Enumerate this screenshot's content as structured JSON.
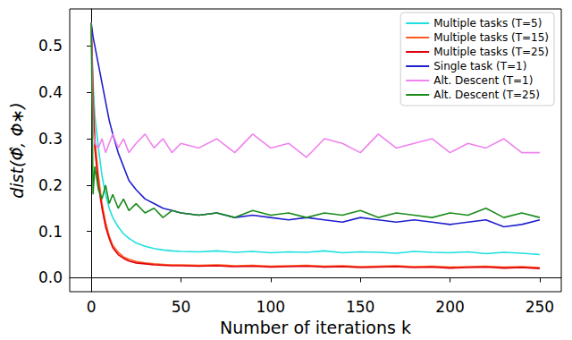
{
  "chart_data": {
    "type": "line",
    "x_label": "Number of iterations k",
    "y_label": "dist(Φ̂, Φ∗)",
    "x": [
      0,
      1,
      2,
      4,
      6,
      8,
      10,
      12,
      15,
      18,
      21,
      25,
      30,
      35,
      40,
      45,
      50,
      60,
      70,
      80,
      90,
      100,
      110,
      120,
      130,
      140,
      150,
      160,
      170,
      180,
      190,
      200,
      210,
      220,
      230,
      240,
      250
    ],
    "series": [
      {
        "name": "Multiple tasks (T=5)",
        "color": "#1fe0e0",
        "values": [
          0.55,
          0.42,
          0.35,
          0.28,
          0.22,
          0.18,
          0.15,
          0.13,
          0.11,
          0.095,
          0.085,
          0.075,
          0.068,
          0.063,
          0.06,
          0.058,
          0.057,
          0.056,
          0.058,
          0.055,
          0.057,
          0.054,
          0.056,
          0.055,
          0.058,
          0.054,
          0.056,
          0.055,
          0.053,
          0.057,
          0.055,
          0.054,
          0.056,
          0.052,
          0.055,
          0.053,
          0.05
        ]
      },
      {
        "name": "Multiple tasks (T=15)",
        "color": "#ff5a1f",
        "values": [
          0.55,
          0.4,
          0.3,
          0.22,
          0.16,
          0.12,
          0.09,
          0.07,
          0.055,
          0.045,
          0.04,
          0.035,
          0.032,
          0.03,
          0.029,
          0.028,
          0.028,
          0.027,
          0.028,
          0.026,
          0.027,
          0.025,
          0.026,
          0.027,
          0.025,
          0.026,
          0.024,
          0.025,
          0.026,
          0.024,
          0.025,
          0.023,
          0.024,
          0.025,
          0.023,
          0.024,
          0.022
        ]
      },
      {
        "name": "Multiple tasks (T=25)",
        "color": "#e0000b",
        "values": [
          0.55,
          0.38,
          0.28,
          0.2,
          0.15,
          0.11,
          0.085,
          0.065,
          0.05,
          0.042,
          0.036,
          0.032,
          0.03,
          0.028,
          0.027,
          0.026,
          0.026,
          0.025,
          0.026,
          0.024,
          0.025,
          0.023,
          0.024,
          0.025,
          0.023,
          0.024,
          0.022,
          0.023,
          0.024,
          0.022,
          0.023,
          0.021,
          0.022,
          0.023,
          0.021,
          0.022,
          0.02
        ]
      },
      {
        "name": "Single task (T=1)",
        "color": "#1f1fd0",
        "values": [
          0.55,
          0.52,
          0.5,
          0.46,
          0.42,
          0.38,
          0.34,
          0.31,
          0.27,
          0.24,
          0.21,
          0.19,
          0.17,
          0.16,
          0.15,
          0.145,
          0.14,
          0.135,
          0.14,
          0.13,
          0.135,
          0.13,
          0.125,
          0.13,
          0.125,
          0.12,
          0.13,
          0.125,
          0.12,
          0.125,
          0.12,
          0.115,
          0.12,
          0.125,
          0.11,
          0.115,
          0.125
        ]
      },
      {
        "name": "Alt. Descent (T=1)",
        "color": "#ee82ee",
        "values": [
          0.55,
          0.32,
          0.29,
          0.28,
          0.3,
          0.27,
          0.29,
          0.31,
          0.28,
          0.3,
          0.27,
          0.29,
          0.31,
          0.28,
          0.3,
          0.27,
          0.29,
          0.28,
          0.3,
          0.27,
          0.31,
          0.28,
          0.29,
          0.26,
          0.3,
          0.29,
          0.27,
          0.31,
          0.28,
          0.29,
          0.3,
          0.27,
          0.29,
          0.28,
          0.3,
          0.27,
          0.27
        ]
      },
      {
        "name": "Alt. Descent (T=25)",
        "color": "#1a8c1a",
        "values": [
          0.55,
          0.18,
          0.24,
          0.19,
          0.17,
          0.2,
          0.16,
          0.18,
          0.15,
          0.17,
          0.145,
          0.16,
          0.14,
          0.15,
          0.13,
          0.145,
          0.14,
          0.135,
          0.14,
          0.13,
          0.145,
          0.135,
          0.14,
          0.13,
          0.14,
          0.135,
          0.145,
          0.13,
          0.14,
          0.135,
          0.13,
          0.14,
          0.135,
          0.15,
          0.13,
          0.14,
          0.13
        ]
      }
    ],
    "xlim": [
      -12,
      262
    ],
    "xticks": [
      0,
      50,
      100,
      150,
      200,
      250
    ],
    "ylim": [
      -0.03,
      0.58
    ],
    "yticks": [
      {
        "value": 0,
        "label": "0.0"
      },
      0.1,
      0.2,
      0.3,
      0.4,
      0.5
    ],
    "grid": false,
    "legend": "upper right"
  }
}
